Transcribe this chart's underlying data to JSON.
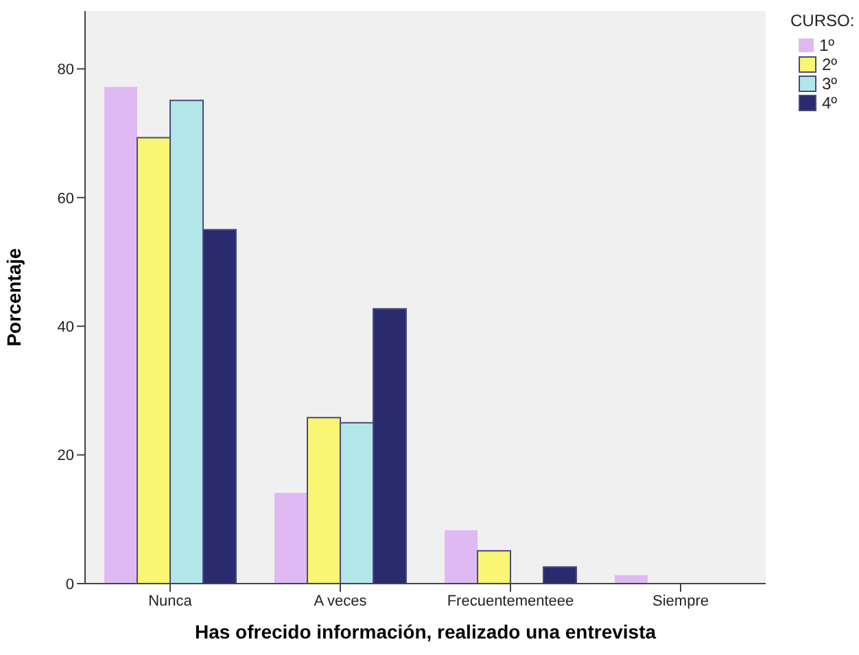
{
  "chart_data": {
    "type": "bar",
    "xlabel": "Has ofrecido información, realizado una entrevista",
    "ylabel": "Porcentaje",
    "legend_title": "CURSO:",
    "categories": [
      "Nunca",
      "A veces",
      "Frecuentementeee",
      "Siempre"
    ],
    "series": [
      {
        "name": "1º",
        "color": "#dfbaf2",
        "values": [
          77.2,
          14.1,
          8.3,
          1.3
        ]
      },
      {
        "name": "2º",
        "color": "#f8f672",
        "values": [
          69.3,
          25.8,
          5.1,
          null
        ]
      },
      {
        "name": "3º",
        "color": "#b3e6e8",
        "values": [
          75.1,
          25.0,
          null,
          null
        ]
      },
      {
        "name": "4º",
        "color": "#2a2a6e",
        "values": [
          55.0,
          42.7,
          2.6,
          null
        ]
      }
    ],
    "ylim": [
      0,
      89
    ],
    "yticks": [
      0,
      20,
      40,
      60,
      80
    ],
    "grid": false,
    "legend": "top right"
  }
}
